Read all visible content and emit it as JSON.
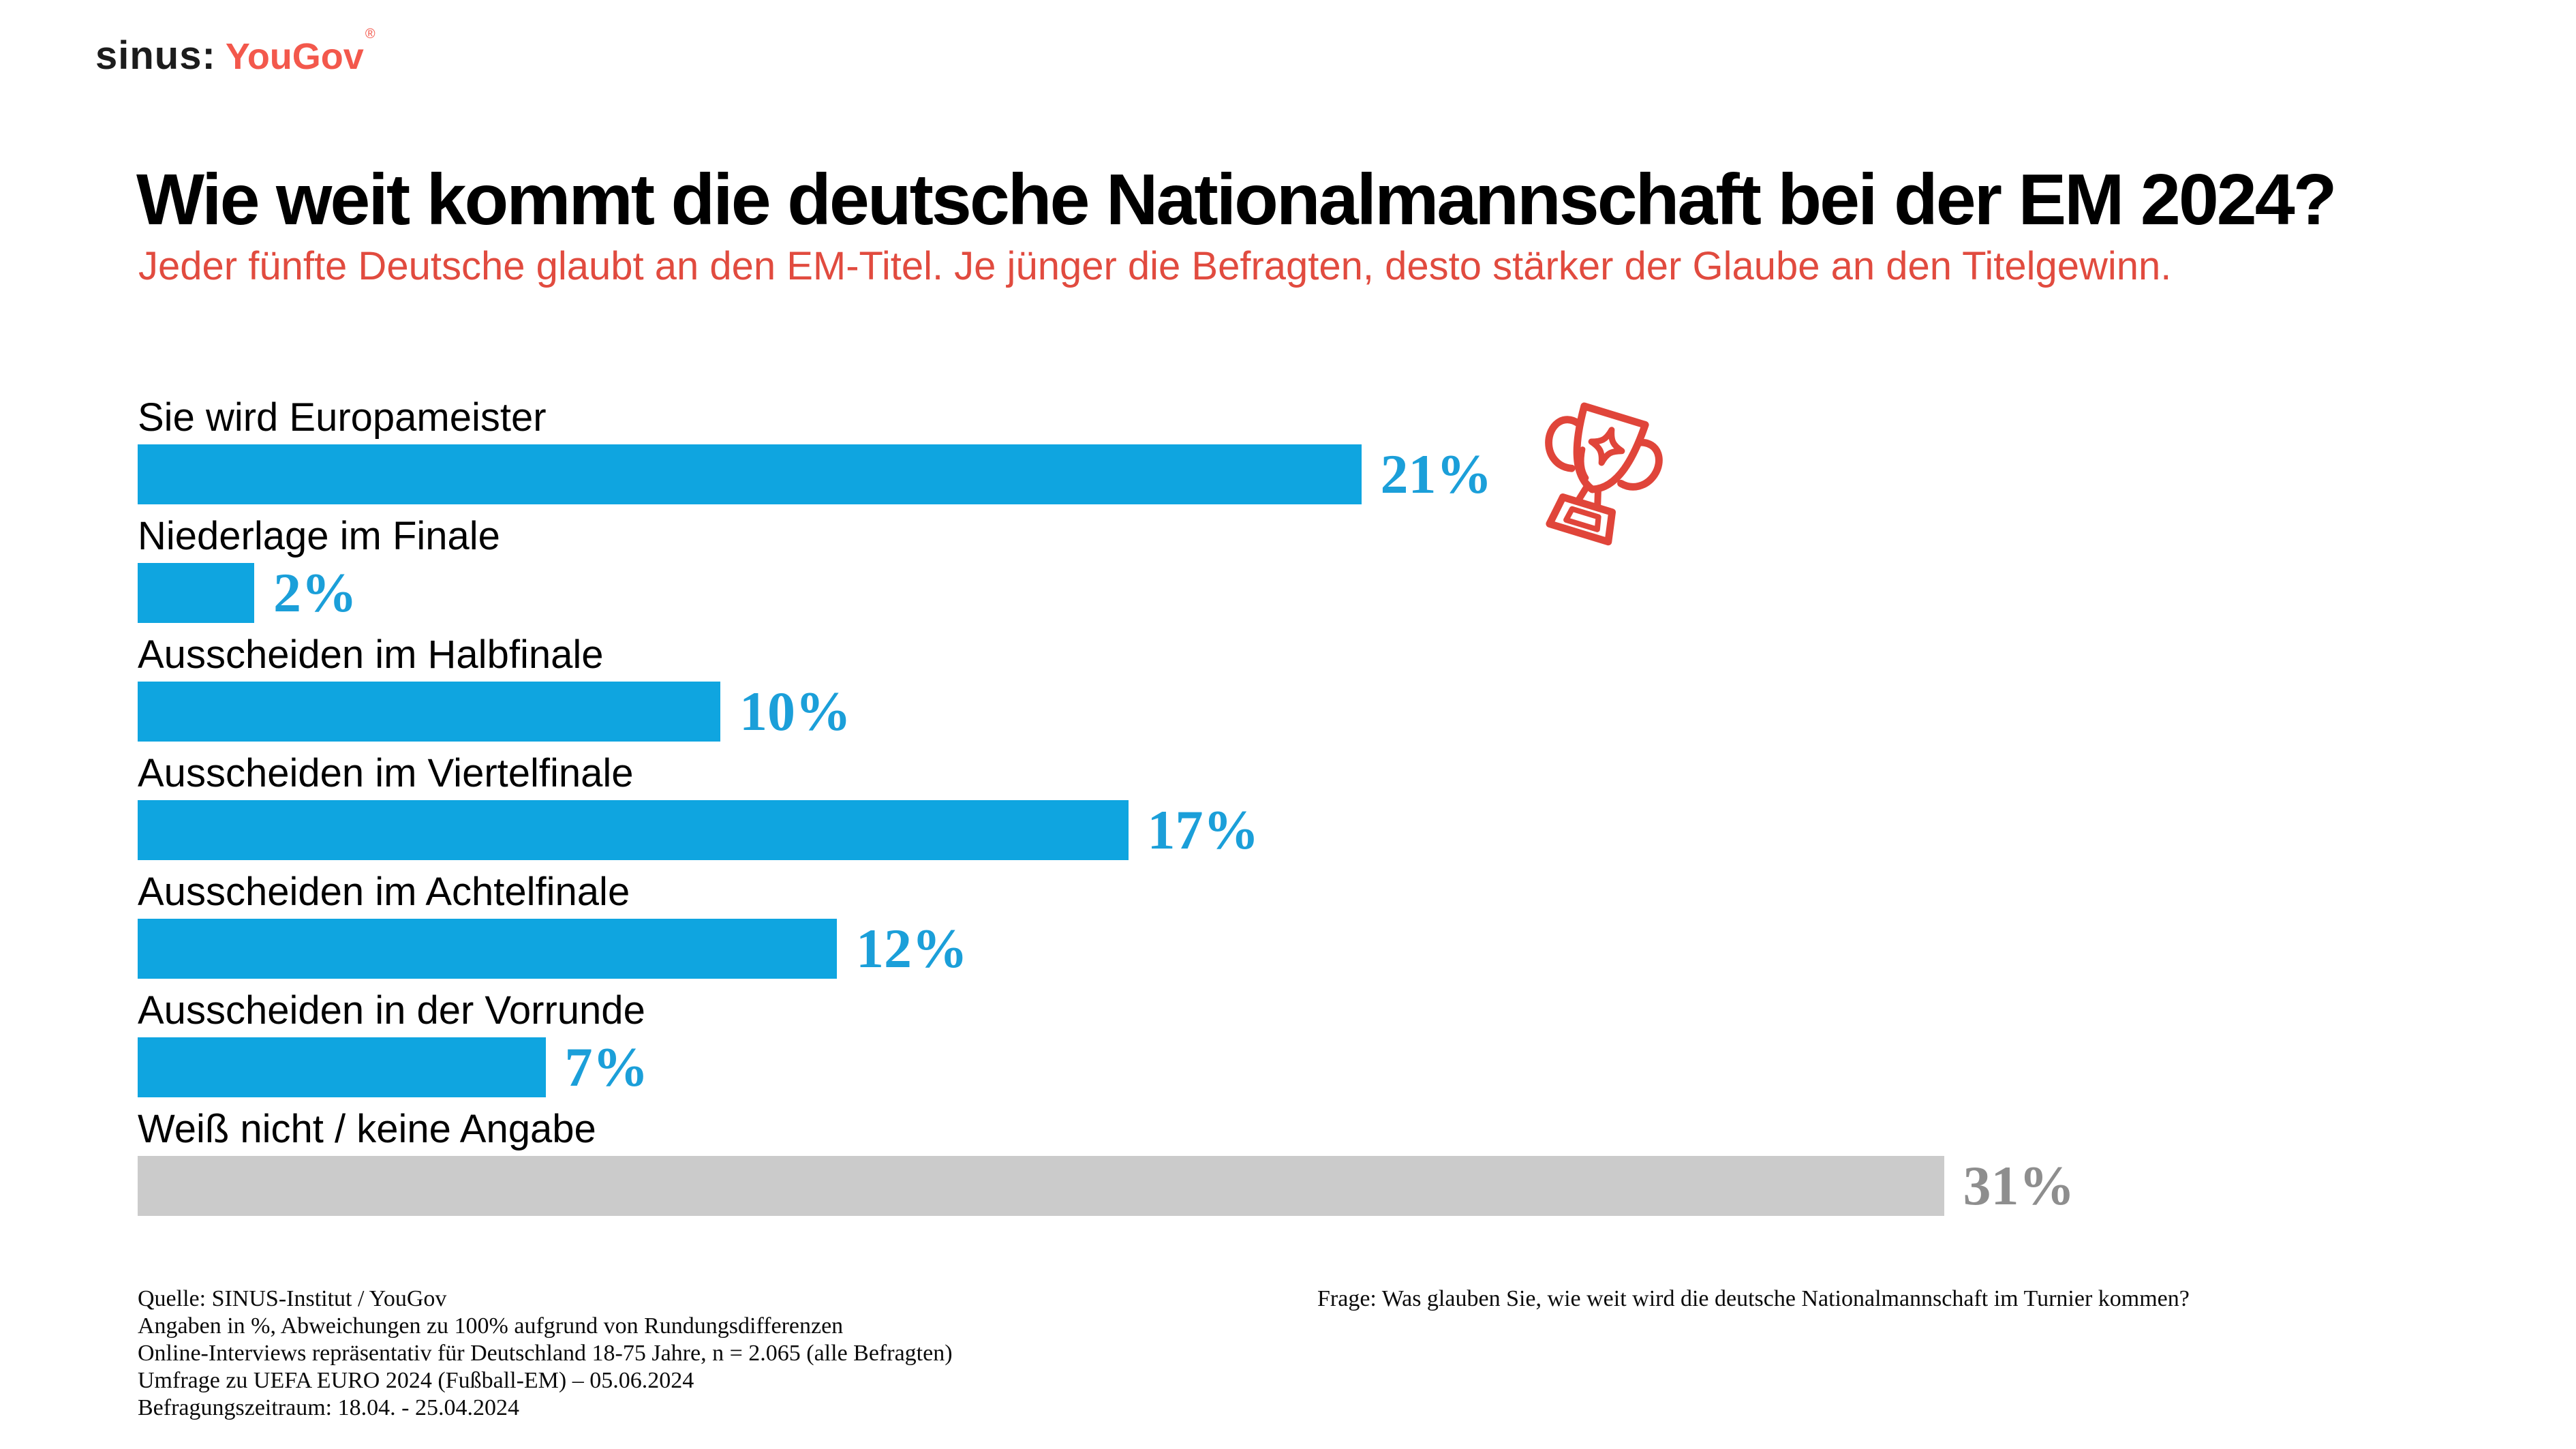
{
  "logo": {
    "sinus": "sinus:",
    "yougov": "YouGov",
    "mark": "®"
  },
  "header": {
    "title": "Wie weit kommt die deutsche Nationalmannschaft bei der EM 2024?",
    "subtitle": "Jeder fünfte Deutsche glaubt an den EM-Titel. Je jünger die Befragten, desto stärker der Glaube an den Titelgewinn."
  },
  "chart_data": {
    "type": "bar",
    "orientation": "horizontal",
    "unit": "%",
    "categories": [
      "Sie wird Europameister",
      "Niederlage im Finale",
      "Ausscheiden im Halbfinale",
      "Ausscheiden im Viertelfinale",
      "Ausscheiden im Achtelfinale",
      "Ausscheiden in der Vorrunde",
      "Weiß nicht / keine Angabe"
    ],
    "values": [
      21,
      2,
      10,
      17,
      12,
      7,
      31
    ],
    "value_labels": [
      "21%",
      "2%",
      "10%",
      "17%",
      "12%",
      "7%",
      "31%"
    ],
    "bar_styles": [
      "highlight",
      "highlight",
      "highlight",
      "highlight",
      "highlight",
      "highlight",
      "neutral"
    ],
    "annotation": "trophy-icon beside the 21% bar (Sie wird Europameister)",
    "axis": "no visible axis; bars scaled to percentage values",
    "grid": false,
    "legend": false
  },
  "colors": {
    "bar_blue": "#0fa5e0",
    "bar_gray": "#cbcbcb",
    "pct_blue": "#1b9fd9",
    "pct_gray": "#8e8e8e",
    "accent_red": "#e14b3f",
    "logo_red": "#f3584c",
    "text_black": "#000000"
  },
  "footnotes_left": [
    "Quelle: SINUS-Institut / YouGov",
    "Angaben in %, Abweichungen zu 100% aufgrund von Rundungsdifferenzen",
    "Online-Interviews repräsentativ für Deutschland 18-75 Jahre, n = 2.065 (alle Befragten)",
    "Umfrage zu UEFA EURO 2024 (Fußball-EM) – 05.06.2024",
    "Befragungszeitraum: 18.04. - 25.04.2024"
  ],
  "footnote_right": "Frage: Was glauben Sie, wie weit wird die deutsche Nationalmannschaft im Turnier kommen?"
}
